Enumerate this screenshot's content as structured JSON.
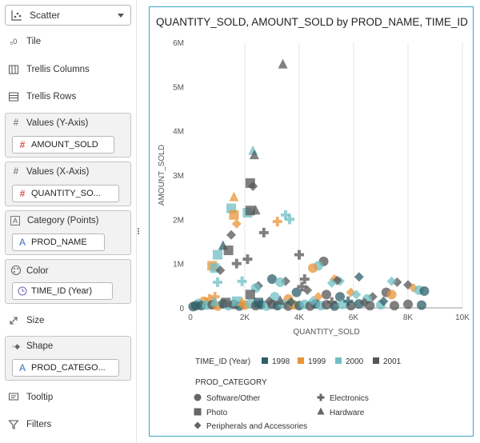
{
  "panel": {
    "chart_type": "Scatter",
    "items": {
      "tile": "Tile",
      "trellis_columns": "Trellis Columns",
      "trellis_rows": "Trellis Rows",
      "size": "Size",
      "tooltip": "Tooltip",
      "filters": "Filters"
    },
    "groups": {
      "values_y": {
        "label": "Values (Y-Axis)",
        "pill": "AMOUNT_SOLD"
      },
      "values_x": {
        "label": "Values (X-Axis)",
        "pill": "QUANTITY_SO..."
      },
      "category": {
        "label": "Category (Points)",
        "pill": "PROD_NAME"
      },
      "color": {
        "label": "Color",
        "pill": "TIME_ID (Year)"
      },
      "shape": {
        "label": "Shape",
        "pill": "PROD_CATEGO..."
      }
    }
  },
  "colors": {
    "1998": "#2e5f6a",
    "1999": "#e8943a",
    "2000": "#6fbfc4",
    "2001": "#555555",
    "panel_border": "#3aa5c8"
  },
  "chart_data": {
    "type": "scatter",
    "title": "QUANTITY_SOLD, AMOUNT_SOLD by PROD_NAME, TIME_ID (Y...",
    "xlabel": "QUANTITY_SOLD",
    "ylabel": "AMOUNT_SOLD",
    "xlim": [
      0,
      10000
    ],
    "ylim": [
      0,
      6000000
    ],
    "x_ticks": [
      0,
      2000,
      4000,
      6000,
      8000,
      10000
    ],
    "x_tick_labels": [
      "0",
      "2K",
      "4K",
      "6K",
      "8K",
      "10K"
    ],
    "y_ticks": [
      0,
      1000000,
      2000000,
      3000000,
      4000000,
      5000000,
      6000000
    ],
    "y_tick_labels": [
      "0",
      "1M",
      "2M",
      "3M",
      "4M",
      "5M",
      "6M"
    ],
    "grid": "vertical",
    "color_legend": {
      "title": "TIME_ID (Year)",
      "items": [
        {
          "label": "1998",
          "color": "#2e5f6a"
        },
        {
          "label": "1999",
          "color": "#e8943a"
        },
        {
          "label": "2000",
          "color": "#6fbfc4"
        },
        {
          "label": "2001",
          "color": "#555555"
        }
      ]
    },
    "shape_legend": {
      "title": "PROD_CATEGORY",
      "items": [
        {
          "label": "Software/Other",
          "shape": "circle"
        },
        {
          "label": "Electronics",
          "shape": "plus"
        },
        {
          "label": "Photo",
          "shape": "square"
        },
        {
          "label": "Hardware",
          "shape": "triangle"
        },
        {
          "label": "Peripherals and Accessories",
          "shape": "diamond"
        }
      ]
    },
    "points": [
      {
        "x": 3400,
        "y": 5500000,
        "shape": "triangle",
        "year": "2001"
      },
      {
        "x": 2300,
        "y": 3550000,
        "shape": "triangle",
        "year": "2000"
      },
      {
        "x": 2350,
        "y": 3450000,
        "shape": "triangle",
        "year": "2001"
      },
      {
        "x": 2200,
        "y": 2820000,
        "shape": "square",
        "year": "2001"
      },
      {
        "x": 2300,
        "y": 2750000,
        "shape": "diamond",
        "year": "2001"
      },
      {
        "x": 1600,
        "y": 2500000,
        "shape": "triangle",
        "year": "1999"
      },
      {
        "x": 1500,
        "y": 2250000,
        "shape": "square",
        "year": "2000"
      },
      {
        "x": 1600,
        "y": 2100000,
        "shape": "square",
        "year": "1999"
      },
      {
        "x": 2100,
        "y": 2150000,
        "shape": "square",
        "year": "2000"
      },
      {
        "x": 2400,
        "y": 2200000,
        "shape": "triangle",
        "year": "2001"
      },
      {
        "x": 2200,
        "y": 2200000,
        "shape": "square",
        "year": "2001"
      },
      {
        "x": 3500,
        "y": 2100000,
        "shape": "plus",
        "year": "2000"
      },
      {
        "x": 3650,
        "y": 2000000,
        "shape": "plus",
        "year": "2000"
      },
      {
        "x": 3200,
        "y": 1950000,
        "shape": "plus",
        "year": "1999"
      },
      {
        "x": 1700,
        "y": 1900000,
        "shape": "diamond",
        "year": "1999"
      },
      {
        "x": 1500,
        "y": 1650000,
        "shape": "diamond",
        "year": "2001"
      },
      {
        "x": 2700,
        "y": 1700000,
        "shape": "plus",
        "year": "2001"
      },
      {
        "x": 1200,
        "y": 1400000,
        "shape": "triangle",
        "year": "1998"
      },
      {
        "x": 1400,
        "y": 1300000,
        "shape": "square",
        "year": "2001"
      },
      {
        "x": 1000,
        "y": 1200000,
        "shape": "square",
        "year": "2000"
      },
      {
        "x": 2100,
        "y": 1100000,
        "shape": "plus",
        "year": "2001"
      },
      {
        "x": 1700,
        "y": 1000000,
        "shape": "plus",
        "year": "2001"
      },
      {
        "x": 800,
        "y": 950000,
        "shape": "square",
        "year": "1999"
      },
      {
        "x": 900,
        "y": 900000,
        "shape": "square",
        "year": "2000"
      },
      {
        "x": 1100,
        "y": 850000,
        "shape": "diamond",
        "year": "2001"
      },
      {
        "x": 4000,
        "y": 1200000,
        "shape": "plus",
        "year": "2001"
      },
      {
        "x": 4900,
        "y": 1050000,
        "shape": "circle",
        "year": "2001"
      },
      {
        "x": 4700,
        "y": 950000,
        "shape": "circle",
        "year": "2000"
      },
      {
        "x": 4500,
        "y": 900000,
        "shape": "circle",
        "year": "1999"
      },
      {
        "x": 6200,
        "y": 700000,
        "shape": "diamond",
        "year": "1998"
      },
      {
        "x": 5300,
        "y": 650000,
        "shape": "diamond",
        "year": "1999"
      },
      {
        "x": 5500,
        "y": 600000,
        "shape": "diamond",
        "year": "2000"
      },
      {
        "x": 5400,
        "y": 620000,
        "shape": "diamond",
        "year": "2001"
      },
      {
        "x": 5200,
        "y": 560000,
        "shape": "diamond",
        "year": "2000"
      },
      {
        "x": 3000,
        "y": 650000,
        "shape": "circle",
        "year": "1998"
      },
      {
        "x": 3500,
        "y": 600000,
        "shape": "diamond",
        "year": "2001"
      },
      {
        "x": 3300,
        "y": 580000,
        "shape": "circle",
        "year": "2000"
      },
      {
        "x": 1900,
        "y": 600000,
        "shape": "plus",
        "year": "2000"
      },
      {
        "x": 1000,
        "y": 580000,
        "shape": "plus",
        "year": "2000"
      },
      {
        "x": 2500,
        "y": 500000,
        "shape": "diamond",
        "year": "2001"
      },
      {
        "x": 2400,
        "y": 450000,
        "shape": "circle",
        "year": "2000"
      },
      {
        "x": 4200,
        "y": 650000,
        "shape": "plus",
        "year": "2001"
      },
      {
        "x": 4100,
        "y": 480000,
        "shape": "plus",
        "year": "2001"
      },
      {
        "x": 4300,
        "y": 400000,
        "shape": "diamond",
        "year": "2001"
      },
      {
        "x": 3900,
        "y": 350000,
        "shape": "circle",
        "year": "1998"
      },
      {
        "x": 7600,
        "y": 580000,
        "shape": "diamond",
        "year": "2001"
      },
      {
        "x": 7400,
        "y": 600000,
        "shape": "diamond",
        "year": "2000"
      },
      {
        "x": 8000,
        "y": 520000,
        "shape": "diamond",
        "year": "2001"
      },
      {
        "x": 8200,
        "y": 450000,
        "shape": "diamond",
        "year": "1999"
      },
      {
        "x": 8400,
        "y": 400000,
        "shape": "circle",
        "year": "2000"
      },
      {
        "x": 8600,
        "y": 380000,
        "shape": "circle",
        "year": "1998"
      },
      {
        "x": 7200,
        "y": 350000,
        "shape": "circle",
        "year": "2001"
      },
      {
        "x": 7400,
        "y": 300000,
        "shape": "circle",
        "year": "1999"
      },
      {
        "x": 6700,
        "y": 250000,
        "shape": "diamond",
        "year": "2001"
      },
      {
        "x": 6500,
        "y": 200000,
        "shape": "circle",
        "year": "2000"
      },
      {
        "x": 5900,
        "y": 350000,
        "shape": "diamond",
        "year": "1999"
      },
      {
        "x": 6100,
        "y": 300000,
        "shape": "diamond",
        "year": "2000"
      },
      {
        "x": 5500,
        "y": 250000,
        "shape": "circle",
        "year": "1998"
      },
      {
        "x": 5000,
        "y": 300000,
        "shape": "circle",
        "year": "2001"
      },
      {
        "x": 4700,
        "y": 250000,
        "shape": "diamond",
        "year": "1999"
      },
      {
        "x": 2200,
        "y": 300000,
        "shape": "square",
        "year": "2001"
      },
      {
        "x": 3100,
        "y": 250000,
        "shape": "circle",
        "year": "2000"
      },
      {
        "x": 3600,
        "y": 200000,
        "shape": "circle",
        "year": "1999"
      },
      {
        "x": 900,
        "y": 250000,
        "shape": "plus",
        "year": "1999"
      },
      {
        "x": 700,
        "y": 200000,
        "shape": "plus",
        "year": "1999"
      },
      {
        "x": 500,
        "y": 150000,
        "shape": "circle",
        "year": "1999"
      },
      {
        "x": 300,
        "y": 100000,
        "shape": "circle",
        "year": "2000"
      },
      {
        "x": 200,
        "y": 50000,
        "shape": "circle",
        "year": "2001"
      },
      {
        "x": 100,
        "y": 30000,
        "shape": "circle",
        "year": "1998"
      },
      {
        "x": 400,
        "y": 50000,
        "shape": "circle",
        "year": "1998"
      },
      {
        "x": 600,
        "y": 60000,
        "shape": "circle",
        "year": "2000"
      },
      {
        "x": 800,
        "y": 70000,
        "shape": "circle",
        "year": "2001"
      },
      {
        "x": 1000,
        "y": 40000,
        "shape": "circle",
        "year": "1999"
      },
      {
        "x": 1200,
        "y": 90000,
        "shape": "circle",
        "year": "1998"
      },
      {
        "x": 1400,
        "y": 50000,
        "shape": "circle",
        "year": "2000"
      },
      {
        "x": 1600,
        "y": 80000,
        "shape": "circle",
        "year": "2001"
      },
      {
        "x": 1800,
        "y": 40000,
        "shape": "circle",
        "year": "1998"
      },
      {
        "x": 2000,
        "y": 60000,
        "shape": "circle",
        "year": "1999"
      },
      {
        "x": 2200,
        "y": 90000,
        "shape": "circle",
        "year": "2000"
      },
      {
        "x": 2400,
        "y": 50000,
        "shape": "circle",
        "year": "2001"
      },
      {
        "x": 2600,
        "y": 70000,
        "shape": "circle",
        "year": "1998"
      },
      {
        "x": 2800,
        "y": 40000,
        "shape": "circle",
        "year": "2000"
      },
      {
        "x": 3000,
        "y": 80000,
        "shape": "circle",
        "year": "2001"
      },
      {
        "x": 3200,
        "y": 50000,
        "shape": "circle",
        "year": "1998"
      },
      {
        "x": 3400,
        "y": 90000,
        "shape": "circle",
        "year": "2000"
      },
      {
        "x": 3600,
        "y": 40000,
        "shape": "circle",
        "year": "2001"
      },
      {
        "x": 3800,
        "y": 70000,
        "shape": "circle",
        "year": "1999"
      },
      {
        "x": 4000,
        "y": 50000,
        "shape": "circle",
        "year": "1998"
      },
      {
        "x": 4200,
        "y": 80000,
        "shape": "circle",
        "year": "2000"
      },
      {
        "x": 4400,
        "y": 40000,
        "shape": "circle",
        "year": "2001"
      },
      {
        "x": 4600,
        "y": 90000,
        "shape": "circle",
        "year": "1998"
      },
      {
        "x": 4800,
        "y": 50000,
        "shape": "circle",
        "year": "2000"
      },
      {
        "x": 5000,
        "y": 70000,
        "shape": "circle",
        "year": "2001"
      },
      {
        "x": 5300,
        "y": 40000,
        "shape": "circle",
        "year": "1998"
      },
      {
        "x": 5600,
        "y": 80000,
        "shape": "circle",
        "year": "2000"
      },
      {
        "x": 5900,
        "y": 50000,
        "shape": "circle",
        "year": "2001"
      },
      {
        "x": 6200,
        "y": 90000,
        "shape": "circle",
        "year": "1998"
      },
      {
        "x": 6600,
        "y": 50000,
        "shape": "circle",
        "year": "2001"
      },
      {
        "x": 7000,
        "y": 70000,
        "shape": "circle",
        "year": "2000"
      },
      {
        "x": 7500,
        "y": 50000,
        "shape": "circle",
        "year": "2001"
      },
      {
        "x": 8000,
        "y": 80000,
        "shape": "circle",
        "year": "2001"
      },
      {
        "x": 8500,
        "y": 60000,
        "shape": "circle",
        "year": "1998"
      },
      {
        "x": 1300,
        "y": 120000,
        "shape": "square",
        "year": "2001"
      },
      {
        "x": 1700,
        "y": 150000,
        "shape": "square",
        "year": "2000"
      },
      {
        "x": 2500,
        "y": 120000,
        "shape": "square",
        "year": "1998"
      },
      {
        "x": 2900,
        "y": 150000,
        "shape": "diamond",
        "year": "2001"
      },
      {
        "x": 3700,
        "y": 130000,
        "shape": "diamond",
        "year": "1998"
      },
      {
        "x": 4500,
        "y": 160000,
        "shape": "diamond",
        "year": "2000"
      },
      {
        "x": 5200,
        "y": 130000,
        "shape": "plus",
        "year": "2001"
      },
      {
        "x": 5800,
        "y": 150000,
        "shape": "plus",
        "year": "1998"
      },
      {
        "x": 6400,
        "y": 120000,
        "shape": "diamond",
        "year": "2001"
      },
      {
        "x": 7100,
        "y": 150000,
        "shape": "diamond",
        "year": "1998"
      },
      {
        "x": 900,
        "y": 140000,
        "shape": "triangle",
        "year": "2000"
      },
      {
        "x": 1900,
        "y": 130000,
        "shape": "triangle",
        "year": "1999"
      },
      {
        "x": 3300,
        "y": 160000,
        "shape": "triangle",
        "year": "2001"
      }
    ]
  }
}
